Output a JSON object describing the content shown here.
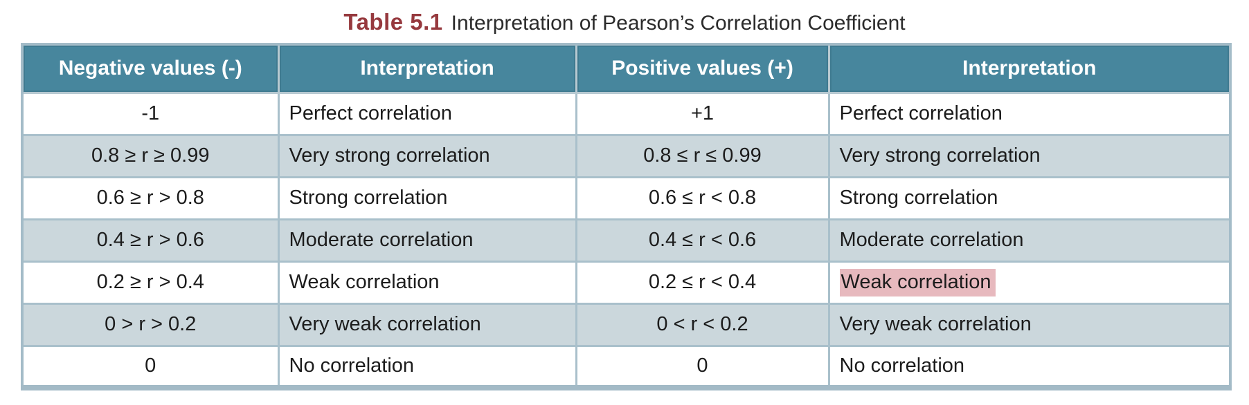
{
  "title": {
    "label": "Table 5.1",
    "text": "Interpretation of Pearson’s Correlation Coefficient"
  },
  "colors": {
    "title_accent": "#96393e",
    "header_bg": "#47869d",
    "header_text": "#ffffff",
    "alt_row_bg": "#cbd7dc",
    "grid_line": "#a9c0cb",
    "outer_border": "#a4bcc8",
    "highlight_bg": "#e7b9be",
    "body_text": "#1c1c1c"
  },
  "chart_data": {
    "type": "table",
    "columns": [
      "Negative values (-)",
      "Interpretation",
      "Positive values (+)",
      "Interpretation"
    ],
    "rows": [
      [
        "-1",
        "Perfect correlation",
        "+1",
        "Perfect correlation"
      ],
      [
        "0.8 ≥ r ≥ 0.99",
        "Very strong correlation",
        "0.8 ≤ r ≤ 0.99",
        "Very strong correlation"
      ],
      [
        "0.6 ≥ r > 0.8",
        "Strong correlation",
        "0.6 ≤ r < 0.8",
        "Strong correlation"
      ],
      [
        "0.4 ≥ r > 0.6",
        "Moderate correlation",
        "0.4 ≤ r < 0.6",
        "Moderate correlation"
      ],
      [
        "0.2 ≥ r > 0.4",
        "Weak correlation",
        "0.2 ≤ r < 0.4",
        "Weak correlation"
      ],
      [
        "0 > r > 0.2",
        "Very weak correlation",
        "0 < r < 0.2",
        "Very weak correlation"
      ],
      [
        "0",
        "No correlation",
        "0",
        "No correlation"
      ]
    ],
    "highlight_cell": {
      "row": 4,
      "col": 3
    }
  }
}
